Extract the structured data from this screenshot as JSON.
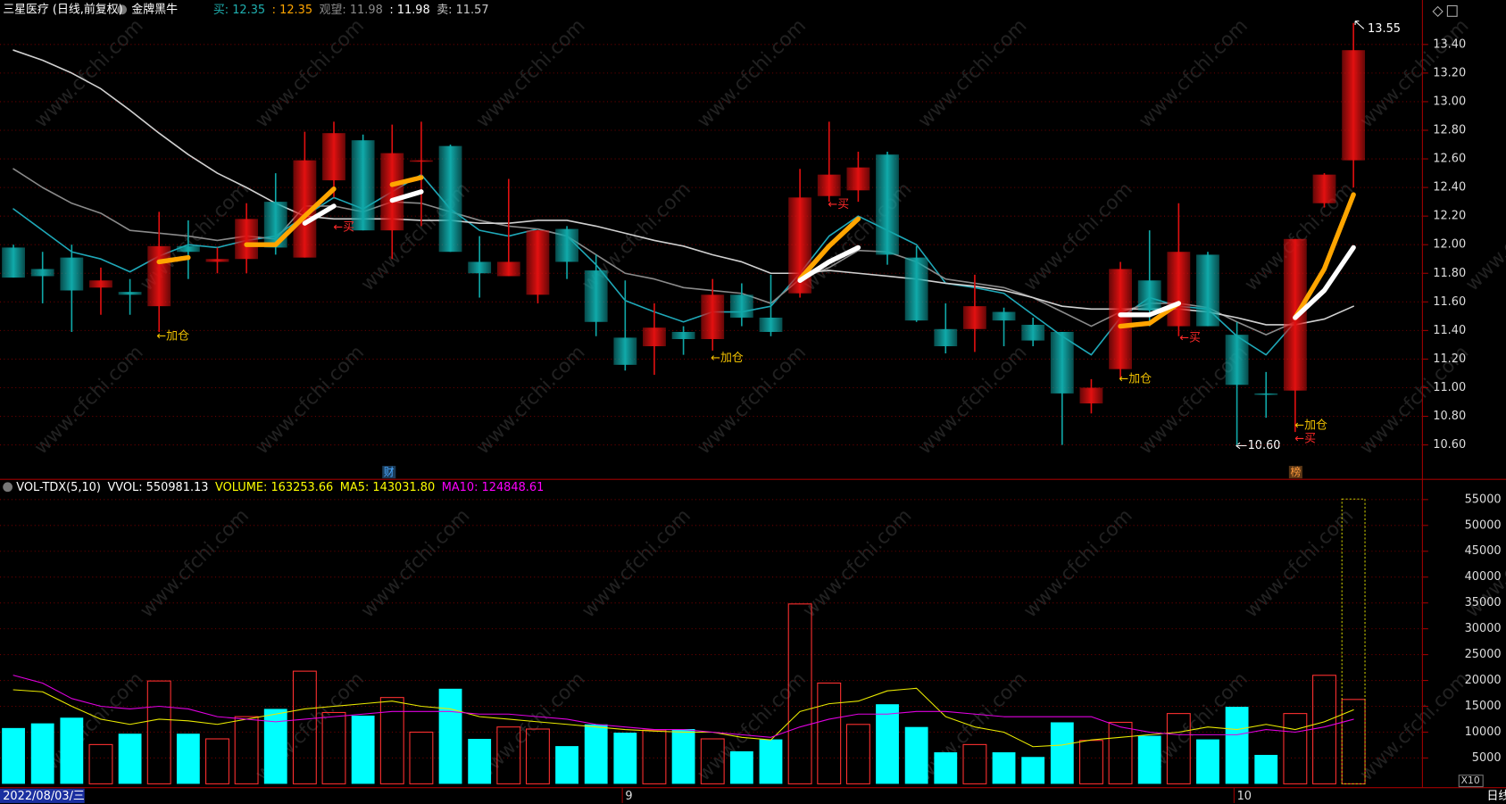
{
  "chart_data": [
    {
      "type": "candlestick",
      "title": "三星医疗 (日线,前复权)",
      "indicator": "金牌黑牛",
      "header_items": [
        {
          "text": "买: 12.35",
          "color": "#1fb0b0"
        },
        {
          "text": ": 12.35",
          "color": "#ffa500"
        },
        {
          "text": "观望: 11.98",
          "color": "#8a8a8a"
        },
        {
          "text": ": 11.98",
          "color": "#ffffff"
        },
        {
          "text": "卖: 11.57",
          "color": "#c8c8c8"
        }
      ],
      "open": [
        11.98,
        11.83,
        11.91,
        11.7,
        11.67,
        11.57,
        11.99,
        11.88,
        11.9,
        12.3,
        11.91,
        12.45,
        12.73,
        12.1,
        12.58,
        12.69,
        11.88,
        11.78,
        11.65,
        12.11,
        11.82,
        11.35,
        11.29,
        11.39,
        11.34,
        11.65,
        11.49,
        11.66,
        12.34,
        12.38,
        12.63,
        11.91,
        11.41,
        11.41,
        11.53,
        11.44,
        11.39,
        10.89,
        11.13,
        11.75,
        11.43,
        11.93,
        11.37,
        10.96,
        10.98,
        12.29,
        12.59
      ],
      "high": [
        12.0,
        11.95,
        12.0,
        11.84,
        11.76,
        12.23,
        12.17,
        11.98,
        12.29,
        12.5,
        12.79,
        12.86,
        12.77,
        12.84,
        12.86,
        12.7,
        12.06,
        12.46,
        12.1,
        12.13,
        11.93,
        11.75,
        11.59,
        11.43,
        11.76,
        11.73,
        11.79,
        12.53,
        12.86,
        12.65,
        12.65,
        11.99,
        11.59,
        11.79,
        11.56,
        11.49,
        11.39,
        11.06,
        11.88,
        12.1,
        12.29,
        11.95,
        11.46,
        11.11,
        12.04,
        12.5,
        13.55
      ],
      "low": [
        11.77,
        11.59,
        11.39,
        11.51,
        11.51,
        11.39,
        11.76,
        11.8,
        11.8,
        11.93,
        11.91,
        12.33,
        12.1,
        11.9,
        12.13,
        11.95,
        11.63,
        11.78,
        11.59,
        11.76,
        11.36,
        11.12,
        11.09,
        11.23,
        11.26,
        11.43,
        11.36,
        11.63,
        12.3,
        12.3,
        11.86,
        11.46,
        11.24,
        11.25,
        11.29,
        11.29,
        10.6,
        10.82,
        11.06,
        11.43,
        11.36,
        11.43,
        10.6,
        10.79,
        10.69,
        12.26,
        12.4
      ],
      "close": [
        11.77,
        11.78,
        11.68,
        11.75,
        11.65,
        11.99,
        11.95,
        11.9,
        12.18,
        11.98,
        12.59,
        12.78,
        12.1,
        12.64,
        12.59,
        11.95,
        11.8,
        11.88,
        12.1,
        11.88,
        11.46,
        11.16,
        11.42,
        11.34,
        11.65,
        11.49,
        11.39,
        12.33,
        12.49,
        12.54,
        11.93,
        11.47,
        11.29,
        11.57,
        11.47,
        11.33,
        10.96,
        11.0,
        11.83,
        11.54,
        11.95,
        11.43,
        11.02,
        10.95,
        12.04,
        12.49,
        13.36
      ],
      "up_color": "#e01010",
      "down_color": "#10a8a8",
      "lines": [
        {
          "color": "#1fa8b8",
          "values": [
            12.25,
            12.1,
            11.95,
            11.9,
            11.81,
            11.92,
            12.0,
            11.98,
            12.03,
            12.06,
            12.2,
            12.33,
            12.25,
            12.37,
            12.49,
            12.25,
            12.1,
            12.06,
            12.11,
            12.06,
            11.86,
            11.61,
            11.53,
            11.46,
            11.53,
            11.53,
            11.57,
            11.8,
            12.06,
            12.2,
            12.1,
            12.0,
            11.73,
            11.7,
            11.66,
            11.51,
            11.36,
            11.23,
            11.49,
            11.63,
            11.57,
            11.55,
            11.36,
            11.23,
            11.46,
            null,
            null
          ]
        },
        {
          "color": "#8a8a8a",
          "values": [
            12.53,
            12.4,
            12.29,
            12.22,
            12.1,
            12.08,
            12.06,
            12.03,
            12.06,
            12.04,
            12.27,
            12.27,
            12.23,
            12.3,
            12.29,
            12.23,
            12.17,
            12.13,
            12.11,
            12.06,
            11.93,
            11.8,
            11.76,
            11.7,
            11.68,
            11.66,
            11.59,
            11.76,
            11.84,
            11.96,
            11.95,
            11.88,
            11.76,
            11.73,
            11.7,
            11.63,
            11.53,
            11.43,
            11.53,
            11.59,
            11.59,
            11.56,
            11.46,
            11.37,
            11.46,
            null,
            null
          ]
        },
        {
          "color": "#d0d0d0",
          "values": [
            13.36,
            13.29,
            13.2,
            13.09,
            12.94,
            12.78,
            12.63,
            12.5,
            12.4,
            12.29,
            12.2,
            12.18,
            12.18,
            12.18,
            12.17,
            12.17,
            12.15,
            12.15,
            12.17,
            12.17,
            12.13,
            12.08,
            12.03,
            11.99,
            11.93,
            11.88,
            11.8,
            11.8,
            11.82,
            11.8,
            11.78,
            11.76,
            11.73,
            11.71,
            11.68,
            11.63,
            11.57,
            11.55,
            11.55,
            11.55,
            11.55,
            11.53,
            11.49,
            11.44,
            11.44,
            11.48,
            11.57
          ]
        },
        {
          "color": "#ffa500",
          "values": [
            null,
            null,
            null,
            null,
            null,
            11.88,
            11.91,
            null,
            12.0,
            12.0,
            12.2,
            12.39,
            null,
            12.42,
            12.47,
            null,
            null,
            null,
            null,
            null,
            null,
            null,
            null,
            null,
            null,
            null,
            null,
            11.76,
            11.99,
            12.18,
            null,
            null,
            null,
            null,
            null,
            null,
            null,
            null,
            11.43,
            11.45,
            11.59,
            null,
            null,
            null,
            11.49,
            11.83,
            12.35
          ]
        },
        {
          "color": "#ffffff",
          "values": [
            null,
            null,
            null,
            null,
            null,
            null,
            null,
            null,
            null,
            null,
            12.15,
            12.27,
            null,
            12.31,
            12.37,
            null,
            null,
            null,
            null,
            null,
            null,
            null,
            null,
            null,
            null,
            null,
            null,
            11.75,
            11.88,
            11.98,
            null,
            null,
            null,
            null,
            null,
            null,
            null,
            null,
            11.51,
            11.51,
            11.59,
            null,
            null,
            null,
            11.49,
            11.68,
            11.98
          ]
        }
      ],
      "ylim": [
        10.44,
        13.59
      ],
      "yticks": [
        {
          "value": 10.6,
          "label": "10.60"
        },
        {
          "value": 10.8,
          "label": "10.80"
        },
        {
          "value": 11.0,
          "label": "11.00"
        },
        {
          "value": 11.2,
          "label": "11.20"
        },
        {
          "value": 11.4,
          "label": "11.40"
        },
        {
          "value": 11.6,
          "label": "11.60"
        },
        {
          "value": 11.8,
          "label": "11.80"
        },
        {
          "value": 12.0,
          "label": "12.00"
        },
        {
          "value": 12.2,
          "label": "12.20"
        },
        {
          "value": 12.4,
          "label": "12.40"
        },
        {
          "value": 12.6,
          "label": "12.60"
        },
        {
          "value": 12.8,
          "label": "12.80"
        },
        {
          "value": 13.0,
          "label": "13.00"
        },
        {
          "value": 13.2,
          "label": "13.20"
        },
        {
          "value": 13.4,
          "label": "13.40"
        }
      ],
      "grid": true,
      "annotations": [
        {
          "text": "←加仓",
          "color": "#f0c000"
        },
        {
          "text": "←加仓",
          "color": "#f0c000"
        },
        {
          "text": "←加仓",
          "color": "#f0c000"
        },
        {
          "text": "←加仓",
          "color": "#f0c000"
        },
        {
          "text": "←买",
          "color": "#ff2a2a"
        },
        {
          "text": "←买",
          "color": "#ff2a2a"
        },
        {
          "text": "←买",
          "color": "#ff2a2a"
        },
        {
          "text": "←买",
          "color": "#ff2a2a"
        }
      ],
      "max_label": "13.55",
      "min_label": "10.60",
      "markers": [
        {
          "text": "财",
          "color": "#4aa8ff"
        },
        {
          "text": "榜",
          "color": "#ff9a3c"
        }
      ],
      "watermark": "www.cfchi.com"
    },
    {
      "type": "bar",
      "header_items": [
        {
          "text": "VOL-TDX(5,10)",
          "color": "#ffffff"
        },
        {
          "text": "VVOL: 550981.13",
          "color": "#ffffff"
        },
        {
          "text": "VOLUME: 163253.66",
          "color": "#ffff00"
        },
        {
          "text": "MA5: 143031.80",
          "color": "#ffff00"
        },
        {
          "text": "MA10: 124848.61",
          "color": "#ff00ff"
        }
      ],
      "categories": [
        "2022/08/03/三",
        null,
        null,
        null,
        null,
        null,
        null,
        null,
        null,
        null,
        null,
        null,
        null,
        null,
        null,
        null,
        null,
        null,
        null,
        null,
        null,
        "9",
        null,
        null,
        null,
        null,
        null,
        null,
        null,
        null,
        null,
        null,
        null,
        null,
        null,
        null,
        null,
        null,
        null,
        null,
        null,
        null,
        "10",
        null,
        null,
        null,
        null
      ],
      "values": [
        10800,
        11700,
        12800,
        7600,
        9700,
        19900,
        9700,
        8700,
        13000,
        14500,
        21800,
        13800,
        13200,
        16700,
        10000,
        18400,
        8700,
        11000,
        10600,
        7300,
        11500,
        9900,
        10400,
        10600,
        8700,
        6300,
        8600,
        34800,
        19500,
        11500,
        15400,
        11000,
        6100,
        7600,
        6100,
        5200,
        11900,
        8400,
        11900,
        9300,
        13600,
        8600,
        14900,
        5600,
        13600,
        21000,
        16325.366
      ],
      "virtual_volume": 55098.113,
      "up_color": "#ff3030",
      "down_color": "#00ffff",
      "lines": [
        {
          "color": "#e8e800",
          "values": [
            18200,
            17800,
            15000,
            12500,
            11500,
            12500,
            12200,
            11500,
            12500,
            13500,
            14500,
            15000,
            15500,
            16000,
            15000,
            14500,
            13000,
            12500,
            12000,
            11500,
            11000,
            10500,
            10200,
            10000,
            10000,
            9000,
            8500,
            14000,
            15500,
            16000,
            18000,
            18500,
            13000,
            11000,
            10000,
            7200,
            7500,
            8500,
            9000,
            9500,
            10000,
            11000,
            10500,
            11500,
            10500,
            12000,
            14303.18
          ]
        },
        {
          "color": "#e000e0",
          "values": [
            21000,
            19500,
            16500,
            15000,
            14500,
            15000,
            14500,
            13000,
            12500,
            12000,
            12500,
            13000,
            13500,
            14000,
            14000,
            14000,
            13500,
            13500,
            13000,
            12500,
            11500,
            11000,
            10500,
            10500,
            10000,
            9500,
            9000,
            11000,
            12500,
            13500,
            13500,
            14000,
            14000,
            13500,
            13000,
            13000,
            13000,
            13000,
            11000,
            10000,
            9500,
            9500,
            9500,
            10500,
            10000,
            11000,
            12484.861
          ]
        }
      ],
      "ylim": [
        0,
        56500
      ],
      "yticks": [
        5000,
        10000,
        15000,
        20000,
        25000,
        30000,
        35000,
        40000,
        45000,
        50000,
        55000
      ],
      "grid": true,
      "multiplier_label": "X10",
      "period_label": "日线"
    }
  ]
}
